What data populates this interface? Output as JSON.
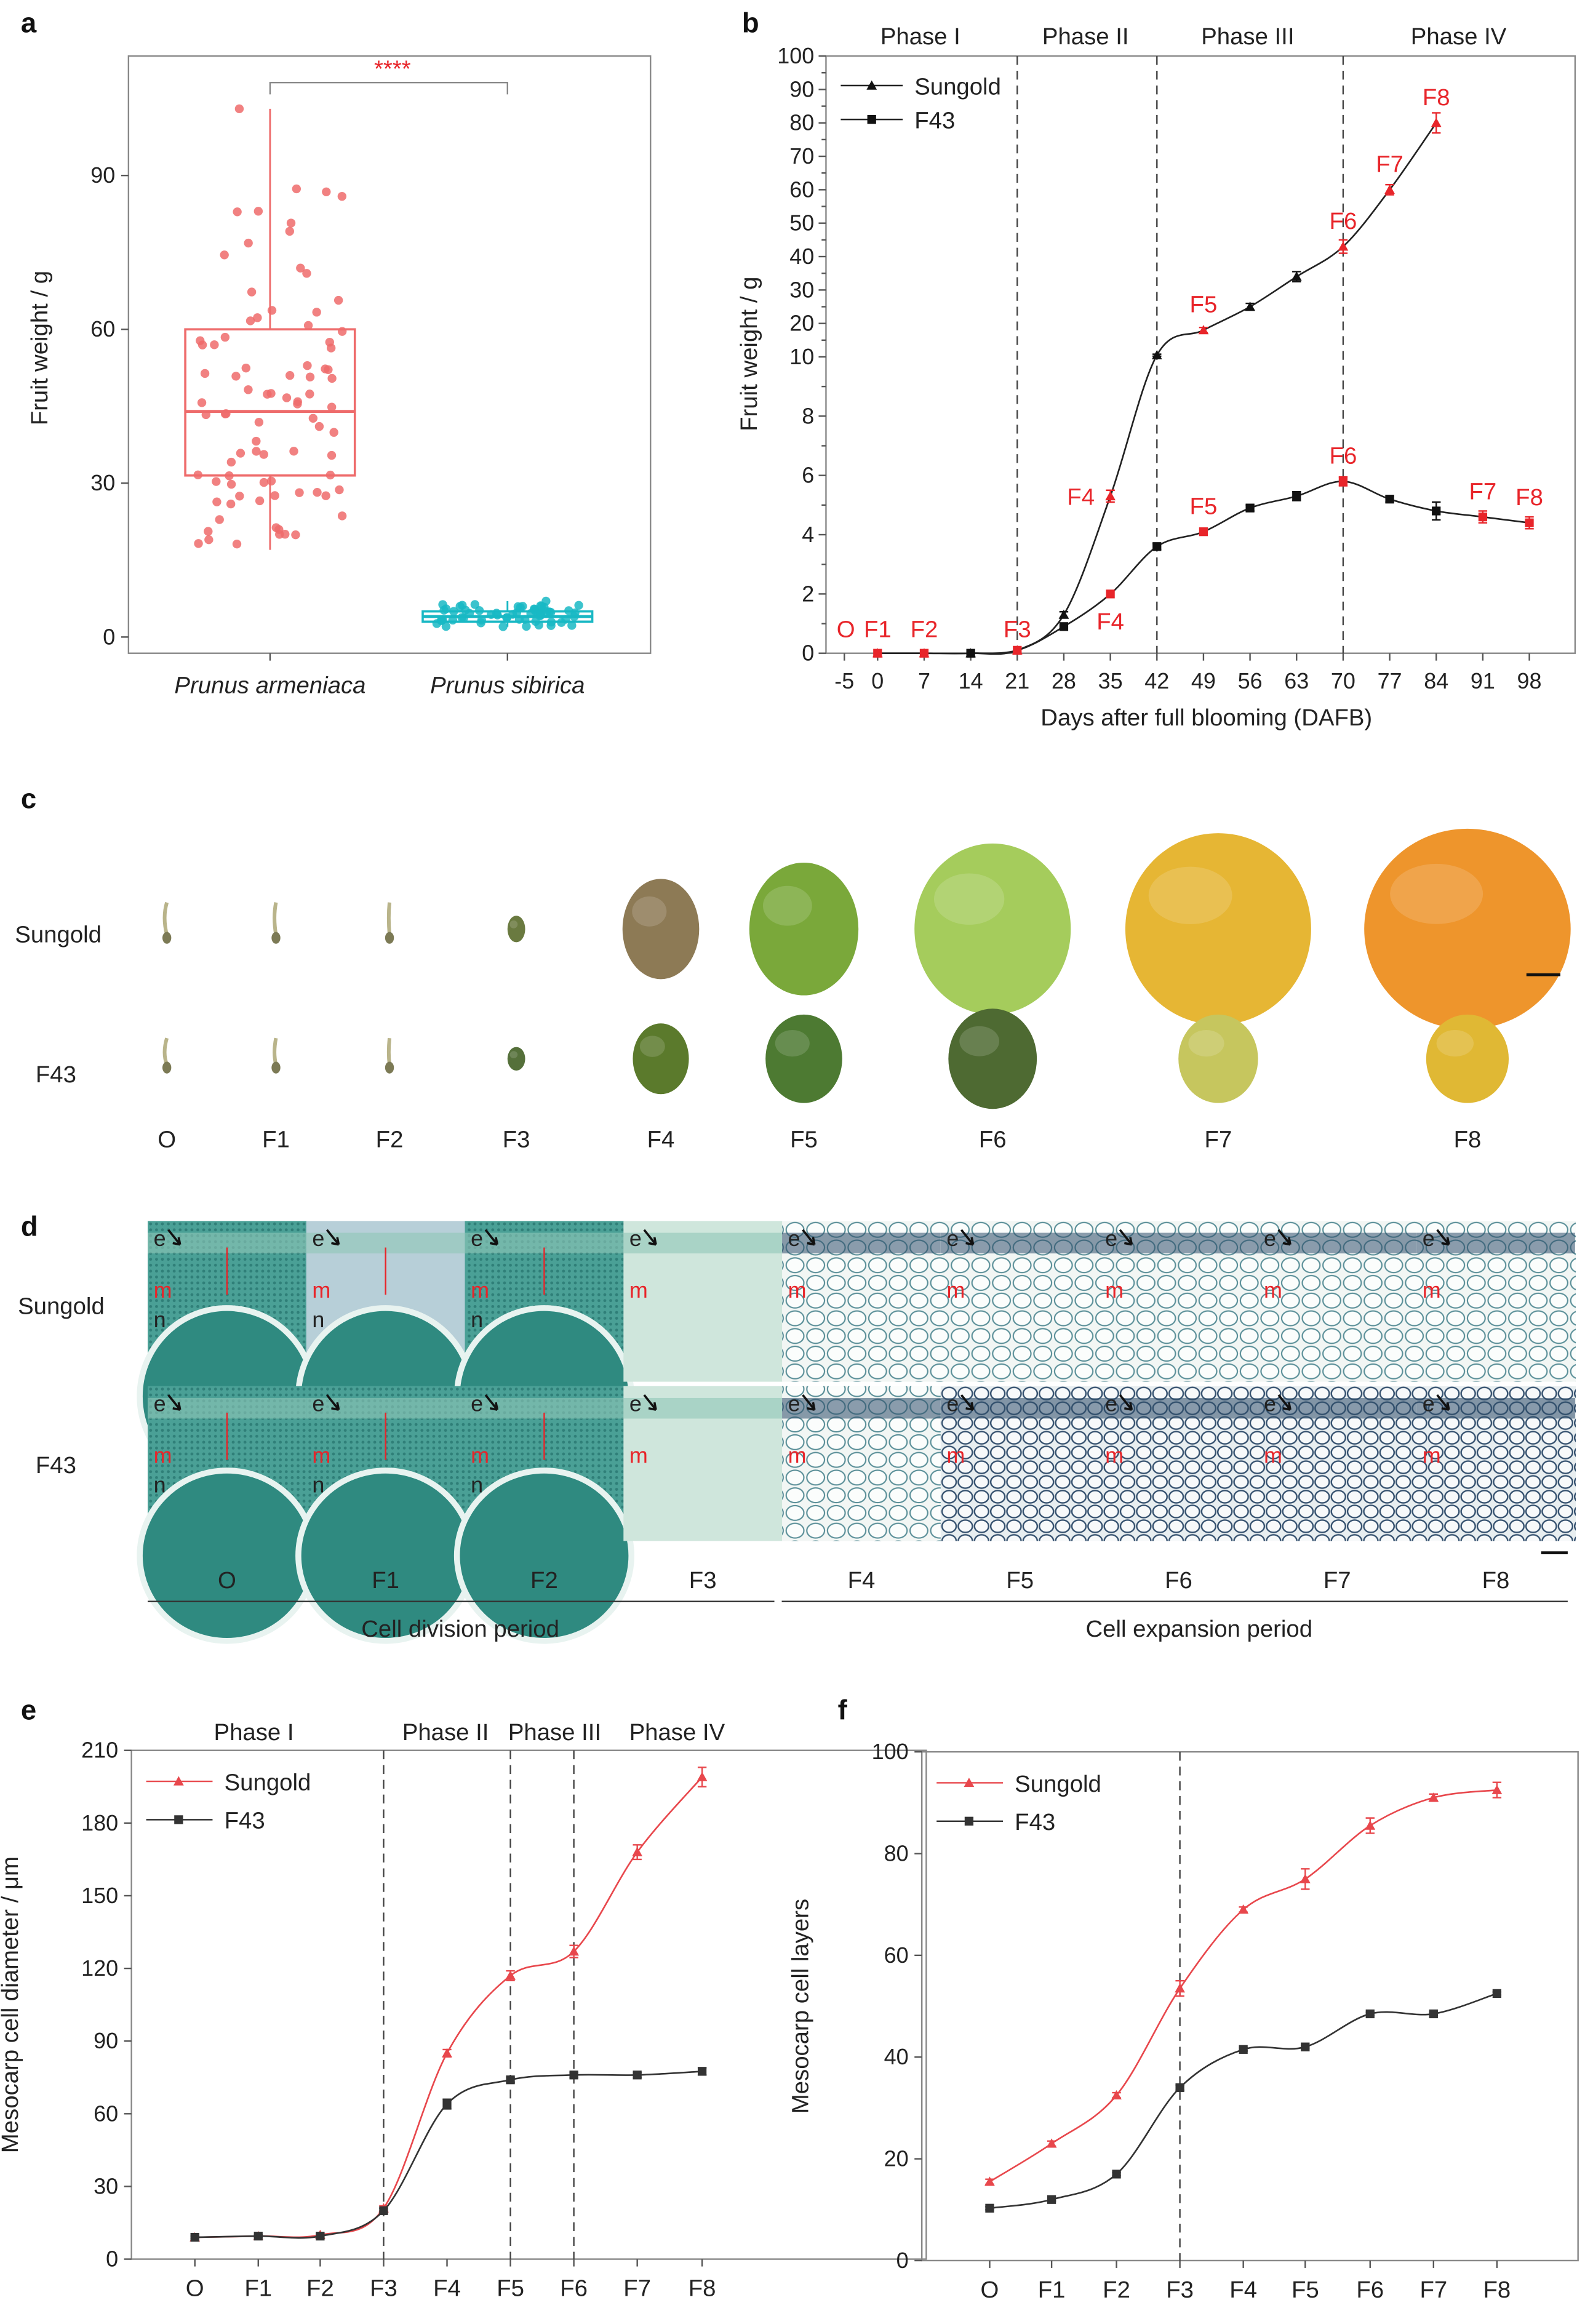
{
  "panel_letters": {
    "a": "a",
    "b": "b",
    "c": "c",
    "d": "d",
    "e": "e",
    "f": "f"
  },
  "colors": {
    "sungold": "#e8474c",
    "f43": "#333333",
    "armeniaca": "#ee6b6b",
    "sibirica": "#19b8c4",
    "stage_label": "#e8252a"
  },
  "chart_data": [
    {
      "id": "a",
      "type": "box",
      "ylabel": "Fruit weight / g",
      "ylim": [
        0,
        105
      ],
      "yticks": [
        0,
        30,
        60,
        90
      ],
      "categories": [
        "Prunus armeniaca",
        "Prunus sibirica"
      ],
      "boxes": [
        {
          "name": "Prunus armeniaca",
          "min": 17,
          "q1": 31.5,
          "median": 44,
          "q3": 60,
          "max": 103,
          "n_points": 85
        },
        {
          "name": "Prunus sibirica",
          "min": 2,
          "q1": 3,
          "median": 4,
          "q3": 5,
          "max": 7,
          "n_points": 60
        }
      ],
      "significance": "****"
    },
    {
      "id": "b",
      "type": "line",
      "xlabel": "Days after full blooming (DAFB)",
      "ylabel": "Fruit weight / g",
      "xticks": [
        -5,
        0,
        7,
        14,
        21,
        28,
        35,
        42,
        49,
        56,
        63,
        70,
        77,
        84,
        91,
        98
      ],
      "yticks_low": [
        0,
        2,
        4,
        6,
        8,
        10
      ],
      "yticks_high": [
        20,
        30,
        40,
        50,
        60,
        70,
        80,
        90,
        100
      ],
      "ylim": [
        0,
        100
      ],
      "y_break": 10,
      "phases": [
        "Phase I",
        "Phase II",
        "Phase III",
        "Phase IV"
      ],
      "phase_dividers": [
        21,
        42,
        70
      ],
      "series": [
        {
          "name": "Sungold",
          "marker": "triangle",
          "x": [
            0,
            7,
            14,
            21,
            28,
            35,
            42,
            49,
            56,
            63,
            70,
            77,
            84
          ],
          "y": [
            0,
            0,
            0,
            0.1,
            1.3,
            5.3,
            10.5,
            18,
            25,
            34,
            43,
            60,
            80
          ],
          "err": [
            0,
            0,
            0,
            0,
            0.1,
            0.2,
            0.3,
            0.8,
            1,
            1.5,
            2,
            1.5,
            3
          ],
          "stage_points": [
            {
              "x": 35,
              "label": "F4"
            },
            {
              "x": 49,
              "label": "F5"
            },
            {
              "x": 70,
              "label": "F6"
            },
            {
              "x": 77,
              "label": "F7"
            },
            {
              "x": 84,
              "label": "F8"
            }
          ]
        },
        {
          "name": "F43",
          "marker": "square",
          "x": [
            0,
            7,
            14,
            21,
            28,
            35,
            42,
            49,
            56,
            63,
            70,
            77,
            84,
            91,
            98
          ],
          "y": [
            0,
            0,
            0,
            0.1,
            0.9,
            2.0,
            3.6,
            4.1,
            4.9,
            5.3,
            5.8,
            5.2,
            4.8,
            4.6,
            4.4
          ],
          "err": [
            0,
            0,
            0,
            0,
            0.05,
            0.05,
            0.1,
            0.05,
            0.1,
            0.15,
            0.15,
            0.1,
            0.3,
            0.2,
            0.2
          ],
          "stage_points": [
            {
              "x": 35,
              "label": "F4"
            },
            {
              "x": 49,
              "label": "F5"
            },
            {
              "x": 70,
              "label": "F6"
            },
            {
              "x": 91,
              "label": "F7"
            },
            {
              "x": 98,
              "label": "F8"
            }
          ]
        }
      ],
      "early_labels": [
        {
          "x": -3,
          "label": "O"
        },
        {
          "x": 0,
          "label": "F1"
        },
        {
          "x": 7,
          "label": "F2"
        },
        {
          "x": 21,
          "label": "F3"
        }
      ]
    },
    {
      "id": "e",
      "type": "line",
      "ylabel": "Mesocarp cell diameter / μm",
      "categories": [
        "O",
        "F1",
        "F2",
        "F3",
        "F4",
        "F5",
        "F6",
        "F7",
        "F8"
      ],
      "ylim": [
        0,
        210
      ],
      "yticks": [
        0,
        30,
        60,
        90,
        120,
        150,
        180,
        210
      ],
      "phases": [
        "Phase I",
        "Phase II",
        "Phase III",
        "Phase IV"
      ],
      "dividers": [
        "F3",
        "F5",
        "F6"
      ],
      "series": [
        {
          "name": "Sungold",
          "marker": "triangle",
          "values": [
            9,
            9.5,
            10,
            21,
            85,
            117,
            127,
            168,
            199
          ],
          "err": [
            0.5,
            0.5,
            0.5,
            1,
            1.5,
            2,
            2.5,
            3,
            4
          ]
        },
        {
          "name": "F43",
          "marker": "square",
          "values": [
            9,
            9.5,
            9.5,
            20,
            64,
            74,
            76,
            76,
            77.5
          ],
          "err": [
            0.5,
            0.5,
            0.5,
            1,
            2,
            1,
            1,
            1,
            1.5
          ]
        }
      ]
    },
    {
      "id": "f",
      "type": "line",
      "ylabel": "Mesocarp cell layers",
      "categories": [
        "O",
        "F1",
        "F2",
        "F3",
        "F4",
        "F5",
        "F6",
        "F7",
        "F8"
      ],
      "ylim": [
        0,
        100
      ],
      "yticks": [
        0,
        20,
        40,
        60,
        80,
        100
      ],
      "dividers": [
        "F3"
      ],
      "series": [
        {
          "name": "Sungold",
          "marker": "triangle",
          "values": [
            15.5,
            23,
            32.5,
            53.5,
            69,
            75,
            85.5,
            91,
            92.5
          ],
          "err": [
            0.5,
            0.5,
            0.5,
            1.5,
            0.5,
            2,
            1.5,
            0.7,
            1.5
          ]
        },
        {
          "name": "F43",
          "marker": "square",
          "values": [
            10.3,
            12,
            17,
            34,
            41.5,
            42,
            48.5,
            48.5,
            52.5
          ],
          "err": [
            0.3,
            0.3,
            0.3,
            0.5,
            0.3,
            0.3,
            0.3,
            0.3,
            0.3
          ]
        }
      ]
    }
  ],
  "panel_c": {
    "rows": [
      "Sungold",
      "F43"
    ],
    "stages": [
      "O",
      "F1",
      "F2",
      "F3",
      "F4",
      "F5",
      "F6",
      "F7",
      "F8"
    ]
  },
  "panel_d": {
    "rows": [
      "Sungold",
      "F43"
    ],
    "stages": [
      "O",
      "F1",
      "F2",
      "F3",
      "F4",
      "F5",
      "F6",
      "F7",
      "F8"
    ],
    "tissue_labels": {
      "e": "e",
      "m": "m",
      "n": "n"
    },
    "periods": [
      "Cell division period",
      "Cell expansion period"
    ]
  }
}
